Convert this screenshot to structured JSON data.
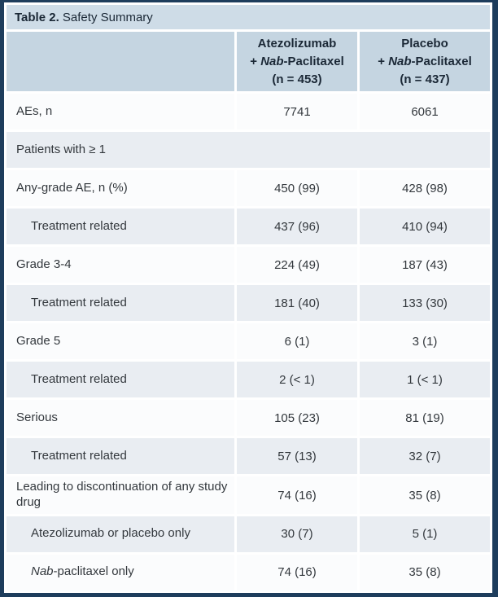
{
  "title": {
    "bold": "Table 2.",
    "rest": " Safety Summary"
  },
  "columns": [
    {
      "line1": "Atezolizumab",
      "line2_prefix": "+ ",
      "line2_italic": "Nab",
      "line2_rest": "-Paclitaxel",
      "line3": "(n = 453)"
    },
    {
      "line1": "Placebo",
      "line2_prefix": "+ ",
      "line2_italic": "Nab",
      "line2_rest": "-Paclitaxel",
      "line3": "(n = 437)"
    }
  ],
  "rows": [
    {
      "label": "AEs, n",
      "col1": "7741",
      "col2": "6061"
    },
    {
      "label": "Patients with ≥ 1"
    },
    {
      "label": "Any-grade AE, n (%)",
      "col1": "450 (99)",
      "col2": "428 (98)"
    },
    {
      "label": "Treatment related",
      "col1": "437 (96)",
      "col2": "410 (94)"
    },
    {
      "label": "Grade 3-4",
      "col1": "224 (49)",
      "col2": "187 (43)"
    },
    {
      "label": "Treatment related",
      "col1": "181 (40)",
      "col2": "133 (30)"
    },
    {
      "label": "Grade 5",
      "col1": "6 (1)",
      "col2": "3 (1)"
    },
    {
      "label": "Treatment related",
      "col1": "2 (< 1)",
      "col2": "1 (< 1)"
    },
    {
      "label": "Serious",
      "col1": "105 (23)",
      "col2": "81 (19)"
    },
    {
      "label": "Treatment related",
      "col1": "57 (13)",
      "col2": "32 (7)"
    },
    {
      "label": "Leading to discontinuation of any study drug",
      "col1": "74 (16)",
      "col2": "35 (8)"
    },
    {
      "label": "Atezolizumab or placebo only",
      "col1": "30 (7)",
      "col2": "5 (1)"
    },
    {
      "label_italic": "Nab",
      "label": "-paclitaxel only",
      "col1": "74 (16)",
      "col2": "35 (8)"
    }
  ],
  "colors": {
    "navy": "#1e3d5c",
    "title-bg": "#cedce7",
    "head-bg": "#c5d5e1",
    "shade-bg": "#e9edf2",
    "plain-bg": "#fbfcfd",
    "text": "#33383d",
    "head-text": "#1b2836"
  }
}
